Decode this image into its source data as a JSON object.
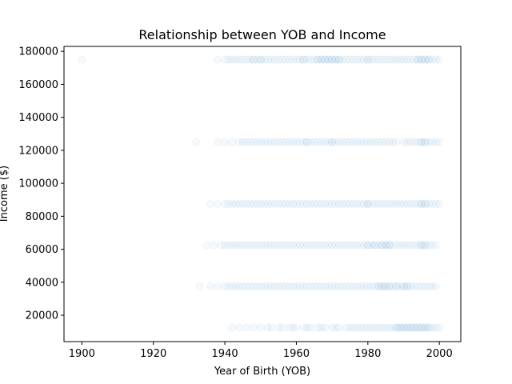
{
  "chart_data": {
    "type": "scatter",
    "title": "Relationship between YOB and Income",
    "xlabel": "Year of Birth (YOB)",
    "ylabel": "Income ($)",
    "xlim": [
      1895,
      2006
    ],
    "ylim": [
      4000,
      183000
    ],
    "xticks": [
      1900,
      1920,
      1940,
      1960,
      1980,
      2000
    ],
    "yticks": [
      20000,
      40000,
      60000,
      80000,
      100000,
      120000,
      140000,
      160000,
      180000
    ],
    "grid": false,
    "point_color": "#1f77b4",
    "point_alpha": 0.02,
    "income_levels": [
      12500,
      37500,
      62500,
      87500,
      125000,
      175000
    ],
    "series": [
      {
        "y": 175000,
        "x": [
          1900,
          1938,
          1940,
          1941,
          1942,
          1943,
          1944,
          1945,
          1946,
          1947,
          1948,
          1948,
          1949,
          1950,
          1950,
          1951,
          1952,
          1953,
          1954,
          1955,
          1956,
          1957,
          1958,
          1959,
          1960,
          1961,
          1962,
          1962,
          1963,
          1964,
          1965,
          1966,
          1966,
          1967,
          1967,
          1968,
          1968,
          1969,
          1969,
          1970,
          1970,
          1971,
          1971,
          1972,
          1972,
          1973,
          1974,
          1975,
          1976,
          1977,
          1978,
          1979,
          1980,
          1980,
          1981,
          1982,
          1983,
          1984,
          1985,
          1986,
          1987,
          1988,
          1989,
          1990,
          1991,
          1992,
          1993,
          1994,
          1994,
          1995,
          1995,
          1996,
          1996,
          1997,
          1997,
          1998,
          1999,
          2000
        ]
      },
      {
        "y": 125000,
        "x": [
          1932,
          1938,
          1940,
          1942,
          1944,
          1945,
          1946,
          1947,
          1948,
          1949,
          1950,
          1951,
          1952,
          1953,
          1954,
          1955,
          1956,
          1957,
          1958,
          1959,
          1960,
          1961,
          1962,
          1963,
          1963,
          1964,
          1965,
          1966,
          1967,
          1968,
          1969,
          1970,
          1970,
          1971,
          1972,
          1973,
          1974,
          1975,
          1976,
          1977,
          1978,
          1979,
          1980,
          1981,
          1982,
          1983,
          1984,
          1985,
          1986,
          1987,
          1988,
          1990,
          1991,
          1992,
          1993,
          1994,
          1995,
          1995,
          1996,
          1996,
          1997,
          1998,
          1999,
          2000
        ]
      },
      {
        "y": 87500,
        "x": [
          1936,
          1938,
          1940,
          1941,
          1942,
          1943,
          1944,
          1945,
          1946,
          1947,
          1948,
          1949,
          1950,
          1951,
          1952,
          1953,
          1954,
          1955,
          1956,
          1957,
          1958,
          1959,
          1960,
          1961,
          1962,
          1963,
          1964,
          1965,
          1966,
          1967,
          1968,
          1969,
          1970,
          1971,
          1972,
          1973,
          1974,
          1975,
          1976,
          1977,
          1978,
          1979,
          1980,
          1980,
          1981,
          1982,
          1983,
          1984,
          1985,
          1986,
          1987,
          1988,
          1989,
          1990,
          1991,
          1992,
          1993,
          1994,
          1995,
          1995,
          1996,
          1996,
          1997,
          1998,
          1999,
          2000
        ]
      },
      {
        "y": 62500,
        "x": [
          1935,
          1937,
          1939,
          1940,
          1941,
          1942,
          1943,
          1944,
          1945,
          1946,
          1947,
          1948,
          1949,
          1950,
          1951,
          1952,
          1953,
          1954,
          1955,
          1956,
          1957,
          1958,
          1959,
          1960,
          1961,
          1962,
          1963,
          1964,
          1965,
          1966,
          1967,
          1968,
          1969,
          1970,
          1971,
          1972,
          1973,
          1974,
          1975,
          1976,
          1977,
          1978,
          1979,
          1980,
          1980,
          1981,
          1982,
          1982,
          1983,
          1984,
          1984,
          1985,
          1985,
          1986,
          1986,
          1987,
          1988,
          1989,
          1990,
          1991,
          1992,
          1993,
          1994,
          1995,
          1995,
          1996,
          1996,
          1997,
          1998,
          1999
        ]
      },
      {
        "y": 37500,
        "x": [
          1933,
          1936,
          1938,
          1940,
          1941,
          1942,
          1943,
          1944,
          1945,
          1946,
          1947,
          1948,
          1949,
          1950,
          1951,
          1952,
          1953,
          1954,
          1955,
          1956,
          1957,
          1958,
          1959,
          1960,
          1961,
          1962,
          1963,
          1964,
          1965,
          1966,
          1967,
          1968,
          1969,
          1970,
          1971,
          1972,
          1973,
          1974,
          1975,
          1976,
          1977,
          1978,
          1979,
          1980,
          1981,
          1982,
          1983,
          1983,
          1984,
          1984,
          1985,
          1985,
          1986,
          1986,
          1987,
          1988,
          1988,
          1989,
          1990,
          1990,
          1991,
          1991,
          1992,
          1993,
          1994,
          1995,
          1996,
          1997,
          1998,
          1999
        ]
      },
      {
        "y": 12500,
        "x": [
          1942,
          1944,
          1946,
          1948,
          1950,
          1952,
          1953,
          1955,
          1956,
          1958,
          1959,
          1960,
          1962,
          1963,
          1964,
          1966,
          1967,
          1968,
          1970,
          1971,
          1972,
          1974,
          1975,
          1976,
          1977,
          1978,
          1979,
          1980,
          1981,
          1982,
          1983,
          1984,
          1985,
          1986,
          1987,
          1988,
          1988,
          1989,
          1989,
          1990,
          1990,
          1991,
          1991,
          1992,
          1992,
          1993,
          1993,
          1994,
          1994,
          1995,
          1995,
          1996,
          1996,
          1997,
          1997,
          1998,
          1999,
          2000
        ]
      }
    ]
  }
}
